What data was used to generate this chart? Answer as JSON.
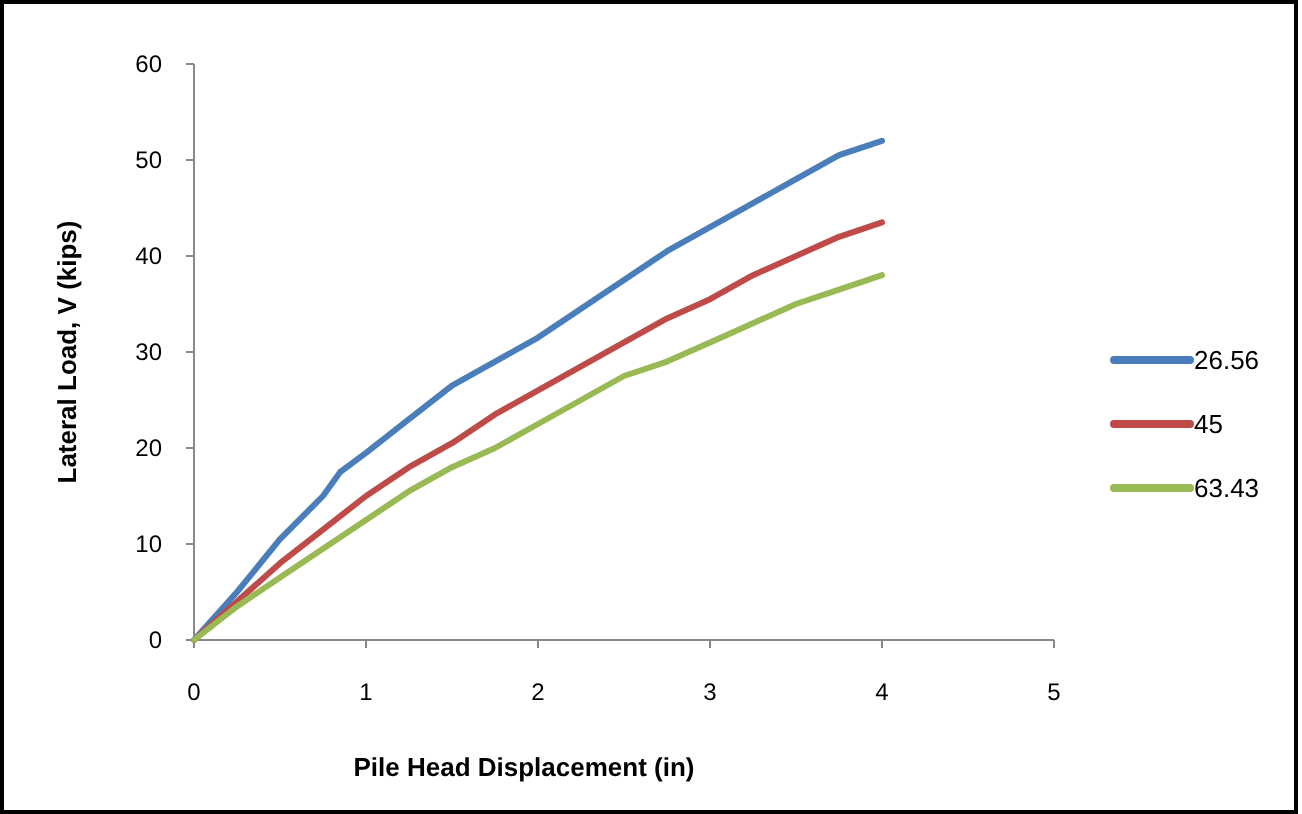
{
  "chart_data": {
    "type": "line",
    "xlabel": "Pile Head Displacement (in)",
    "ylabel": "Lateral Load, V (kips)",
    "xlim": [
      0,
      5
    ],
    "ylim": [
      0,
      60
    ],
    "xticks": [
      0,
      1,
      2,
      3,
      4,
      5
    ],
    "yticks": [
      0,
      10,
      20,
      30,
      40,
      50,
      60
    ],
    "grid": false,
    "legend": "right",
    "marker": "none",
    "line_style": "solid",
    "series": [
      {
        "name": "26.56",
        "color": "#4a7ebb",
        "x": [
          0,
          0.25,
          0.5,
          0.75,
          0.85,
          1,
          1.25,
          1.5,
          1.75,
          2,
          2.25,
          2.5,
          2.75,
          3,
          3.25,
          3.5,
          3.75,
          4
        ],
        "values": [
          0,
          5,
          10.5,
          15,
          17.5,
          19.5,
          23,
          26.5,
          29,
          31.5,
          34.5,
          37.5,
          40.5,
          43,
          45.5,
          48,
          50.5,
          52
        ]
      },
      {
        "name": "45",
        "color": "#be4b48",
        "x": [
          0,
          0.25,
          0.5,
          0.75,
          1,
          1.25,
          1.5,
          1.75,
          2,
          2.25,
          2.5,
          2.75,
          3,
          3.25,
          3.5,
          3.75,
          4
        ],
        "values": [
          0,
          4,
          8,
          11.5,
          15,
          18,
          20.5,
          23.5,
          26,
          28.5,
          31,
          33.5,
          35.5,
          38,
          40,
          42,
          43.5
        ]
      },
      {
        "name": "63.43",
        "color": "#98b954",
        "x": [
          0,
          0.25,
          0.5,
          0.75,
          1,
          1.25,
          1.5,
          1.75,
          2,
          2.25,
          2.5,
          2.75,
          3,
          3.25,
          3.5,
          3.75,
          4
        ],
        "values": [
          0,
          3.5,
          6.5,
          9.5,
          12.5,
          15.5,
          18,
          20,
          22.5,
          25,
          27.5,
          29,
          31,
          33,
          35,
          36.5,
          38
        ]
      }
    ]
  }
}
